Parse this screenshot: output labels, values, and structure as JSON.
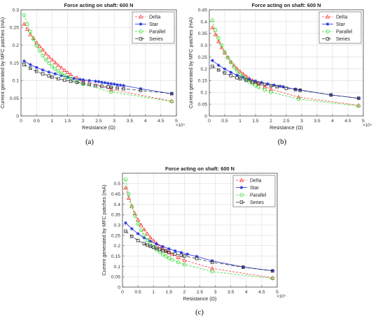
{
  "colors": {
    "delta": "#ff3b3b",
    "star": "#1f2fd8",
    "parallel": "#33dd33",
    "series": "#333333",
    "grid": "#dcdcdc"
  },
  "chart_data": [
    {
      "panel_label": "(a)",
      "type": "line",
      "title": "Force acting on shaft: 600 N",
      "xlabel": "Resistance (Ω)",
      "ylabel": "Current generated by MFC patches (mA)",
      "x_exponent": "×10⁵",
      "xlim": [
        0,
        5
      ],
      "ylim": [
        0,
        0.3
      ],
      "xticks": [
        "0",
        "0.5",
        "1",
        "1.5",
        "2",
        "2.5",
        "3",
        "3.5",
        "4",
        "4.5",
        "5"
      ],
      "yticks": [
        "0",
        "0.05",
        "0.1",
        "0.15",
        "0.2",
        "0.25",
        "0.3"
      ],
      "grid": true,
      "legend_position": "top-right",
      "series": [
        {
          "name": "Delta",
          "marker": "triangle",
          "color": "#ff3b3b",
          "x": [
            0.1,
            0.2,
            0.3,
            0.4,
            0.5,
            0.6,
            0.7,
            0.8,
            0.9,
            1.0,
            1.1,
            1.2,
            1.3,
            1.4,
            1.5,
            1.6,
            1.8,
            2.0,
            2.9,
            4.85
          ],
          "y": [
            0.26,
            0.245,
            0.23,
            0.22,
            0.207,
            0.197,
            0.187,
            0.176,
            0.167,
            0.159,
            0.151,
            0.143,
            0.136,
            0.129,
            0.123,
            0.117,
            0.108,
            0.101,
            0.075,
            0.042
          ]
        },
        {
          "name": "Star",
          "marker": "asterisk",
          "color": "#1f2fd8",
          "x": [
            0.1,
            0.3,
            0.5,
            0.7,
            0.9,
            1.1,
            1.3,
            1.5,
            1.7,
            1.9,
            2.0,
            2.2,
            2.4,
            2.5,
            2.6,
            2.7,
            2.8,
            2.9,
            3.0,
            3.1,
            3.2,
            3.3,
            3.85,
            4.85
          ],
          "y": [
            0.155,
            0.145,
            0.137,
            0.13,
            0.124,
            0.119,
            0.114,
            0.11,
            0.106,
            0.103,
            0.102,
            0.1,
            0.098,
            0.097,
            0.095,
            0.094,
            0.092,
            0.091,
            0.09,
            0.088,
            0.087,
            0.086,
            0.077,
            0.063
          ]
        },
        {
          "name": "Parallel",
          "marker": "circle",
          "color": "#33dd33",
          "x": [
            0.1,
            0.2,
            0.3,
            0.4,
            0.5,
            0.6,
            0.7,
            0.8,
            0.9,
            1.0,
            1.1,
            1.2,
            1.3,
            1.4,
            1.5,
            1.6,
            1.8,
            2.0,
            2.9,
            4.85
          ],
          "y": [
            0.285,
            0.26,
            0.238,
            0.217,
            0.199,
            0.184,
            0.17,
            0.159,
            0.149,
            0.14,
            0.133,
            0.126,
            0.12,
            0.114,
            0.109,
            0.105,
            0.097,
            0.09,
            0.068,
            0.041
          ]
        },
        {
          "name": "Series",
          "marker": "square",
          "color": "#333333",
          "x": [
            0.1,
            0.3,
            0.5,
            0.7,
            0.9,
            1.0,
            1.2,
            1.4,
            1.6,
            1.8,
            2.0,
            2.2,
            2.4,
            2.6,
            2.8,
            2.9,
            3.1,
            3.3,
            3.85,
            4.85
          ],
          "y": [
            0.145,
            0.135,
            0.126,
            0.119,
            0.113,
            0.11,
            0.105,
            0.101,
            0.098,
            0.095,
            0.092,
            0.089,
            0.086,
            0.084,
            0.082,
            0.081,
            0.079,
            0.077,
            0.072,
            0.063
          ]
        }
      ]
    },
    {
      "panel_label": "(b)",
      "type": "line",
      "title": "Force acting on shaft: 600 N",
      "xlabel": "Resistance (Ω)",
      "ylabel": "Current generated by MFC patches (mA)",
      "x_exponent": "×10⁵",
      "xlim": [
        0,
        5
      ],
      "ylim": [
        0,
        0.45
      ],
      "xticks": [
        "0",
        "0.5",
        "1",
        "1.5",
        "2",
        "2.5",
        "3",
        "3.5",
        "4",
        "4.5",
        "5"
      ],
      "yticks": [
        "0",
        "0.05",
        "0.1",
        "0.15",
        "0.2",
        "0.25",
        "0.3",
        "0.35",
        "0.4",
        "0.45"
      ],
      "grid": true,
      "legend_position": "top-right",
      "series": [
        {
          "name": "Delta",
          "marker": "triangle",
          "color": "#ff3b3b",
          "x": [
            0.1,
            0.2,
            0.3,
            0.4,
            0.5,
            0.6,
            0.7,
            0.8,
            0.9,
            1.0,
            1.1,
            1.2,
            1.3,
            1.4,
            1.5,
            1.6,
            1.8,
            2.0,
            2.9,
            4.85
          ],
          "y": [
            0.375,
            0.345,
            0.315,
            0.29,
            0.268,
            0.248,
            0.23,
            0.215,
            0.201,
            0.189,
            0.178,
            0.168,
            0.159,
            0.151,
            0.143,
            0.136,
            0.124,
            0.114,
            0.08,
            0.045
          ]
        },
        {
          "name": "Star",
          "marker": "asterisk",
          "color": "#1f2fd8",
          "x": [
            0.1,
            0.3,
            0.5,
            0.7,
            0.9,
            1.1,
            1.3,
            1.5,
            1.7,
            1.9,
            2.1,
            2.3,
            2.4,
            2.8,
            2.95,
            3.95,
            4.85
          ],
          "y": [
            0.235,
            0.215,
            0.199,
            0.185,
            0.173,
            0.163,
            0.155,
            0.148,
            0.142,
            0.136,
            0.131,
            0.126,
            0.124,
            0.113,
            0.11,
            0.089,
            0.075
          ]
        },
        {
          "name": "Parallel",
          "marker": "circle",
          "color": "#33dd33",
          "x": [
            0.1,
            0.2,
            0.3,
            0.4,
            0.5,
            0.6,
            0.7,
            0.8,
            0.9,
            1.0,
            1.1,
            1.2,
            1.3,
            1.4,
            1.5,
            1.6,
            1.8,
            2.0,
            2.9,
            4.85
          ],
          "y": [
            0.405,
            0.365,
            0.33,
            0.3,
            0.272,
            0.248,
            0.227,
            0.208,
            0.192,
            0.178,
            0.166,
            0.155,
            0.145,
            0.137,
            0.129,
            0.122,
            0.111,
            0.101,
            0.072,
            0.042
          ]
        },
        {
          "name": "Series",
          "marker": "square",
          "color": "#333333",
          "x": [
            0.1,
            0.3,
            0.5,
            0.7,
            0.9,
            1.0,
            1.2,
            1.4,
            1.6,
            1.8,
            2.0,
            2.2,
            2.5,
            2.8,
            2.95,
            3.95,
            4.85
          ],
          "y": [
            0.21,
            0.195,
            0.182,
            0.171,
            0.162,
            0.158,
            0.151,
            0.144,
            0.138,
            0.133,
            0.128,
            0.124,
            0.117,
            0.112,
            0.109,
            0.089,
            0.075
          ]
        }
      ]
    },
    {
      "panel_label": "(c)",
      "type": "line",
      "title": "Force acting on shaft: 600 N",
      "xlabel": "Resistance (Ω)",
      "ylabel": "Current generated by MFC patches (mA)",
      "x_exponent": "×10⁵",
      "xlim": [
        0,
        5
      ],
      "ylim": [
        0,
        0.55
      ],
      "xticks": [
        "0",
        "0.5",
        "1",
        "1.5",
        "2",
        "2.5",
        "3",
        "3.5",
        "4",
        "4.5",
        "5"
      ],
      "yticks": [
        "0",
        "0.05",
        "0.1",
        "0.15",
        "0.2",
        "0.25",
        "0.3",
        "0.35",
        "0.4",
        "0.45",
        "0.5"
      ],
      "grid": true,
      "legend_position": "top-right",
      "series": [
        {
          "name": "Delta",
          "marker": "triangle",
          "color": "#ff3b3b",
          "x": [
            0.1,
            0.2,
            0.3,
            0.4,
            0.5,
            0.6,
            0.7,
            0.8,
            0.9,
            1.0,
            1.1,
            1.2,
            1.3,
            1.4,
            1.5,
            1.6,
            1.8,
            2.0,
            2.9,
            4.85
          ],
          "y": [
            0.48,
            0.43,
            0.39,
            0.355,
            0.325,
            0.3,
            0.278,
            0.258,
            0.24,
            0.225,
            0.211,
            0.198,
            0.187,
            0.177,
            0.167,
            0.158,
            0.143,
            0.13,
            0.09,
            0.045
          ]
        },
        {
          "name": "Star",
          "marker": "asterisk",
          "color": "#1f2fd8",
          "x": [
            0.1,
            0.3,
            0.5,
            0.7,
            0.9,
            1.1,
            1.3,
            1.5,
            1.7,
            1.9,
            2.1,
            2.4,
            2.9,
            3.9,
            4.85
          ],
          "y": [
            0.31,
            0.282,
            0.258,
            0.238,
            0.222,
            0.208,
            0.196,
            0.185,
            0.175,
            0.167,
            0.159,
            0.148,
            0.127,
            0.097,
            0.079
          ]
        },
        {
          "name": "Parallel",
          "marker": "circle",
          "color": "#33dd33",
          "x": [
            0.1,
            0.2,
            0.3,
            0.4,
            0.5,
            0.6,
            0.7,
            0.8,
            0.9,
            1.0,
            1.1,
            1.2,
            1.3,
            1.4,
            1.5,
            1.6,
            1.8,
            2.0,
            2.9,
            4.85
          ],
          "y": [
            0.52,
            0.45,
            0.39,
            0.345,
            0.306,
            0.275,
            0.25,
            0.228,
            0.21,
            0.195,
            0.181,
            0.169,
            0.158,
            0.149,
            0.14,
            0.133,
            0.12,
            0.109,
            0.075,
            0.042
          ]
        },
        {
          "name": "Series",
          "marker": "square",
          "color": "#333333",
          "x": [
            0.1,
            0.3,
            0.5,
            0.7,
            0.8,
            0.9,
            1.0,
            1.1,
            1.2,
            1.3,
            1.4,
            1.5,
            1.7,
            1.9,
            2.0,
            2.4,
            2.9,
            3.9,
            4.85
          ],
          "y": [
            0.27,
            0.245,
            0.225,
            0.21,
            0.203,
            0.197,
            0.192,
            0.187,
            0.182,
            0.177,
            0.173,
            0.168,
            0.16,
            0.153,
            0.15,
            0.138,
            0.12,
            0.096,
            0.078
          ]
        }
      ]
    }
  ]
}
